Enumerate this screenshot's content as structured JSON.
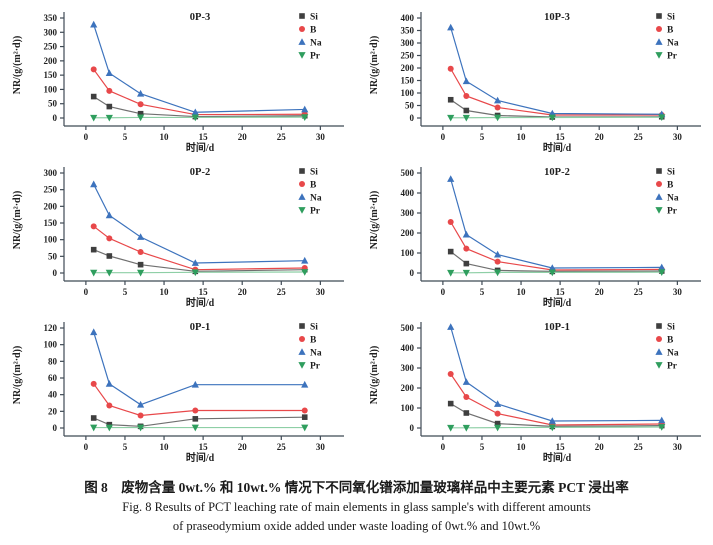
{
  "style": {
    "axis_color": "#3f4a55",
    "text_color": "#1f1f1f",
    "background": "#ffffff",
    "series_colors": {
      "Si": "#3f3f3f",
      "B": "#e8484a",
      "Na": "#3d73bd",
      "Pr": "#2f9e5e"
    }
  },
  "caption": {
    "zh": "图 8　废物含量 0wt.% 和 10wt.% 情况下不同氧化镨添加量玻璃样品中主要元素 PCT 浸出率",
    "en_line1": "Fig. 8    Results of PCT leaching rate of main elements in glass sample's with different amounts",
    "en_line2": "of praseodymium oxide added under waste loading of 0wt.% and 10wt.%"
  },
  "chart_data": [
    {
      "type": "line",
      "title": "0P-3",
      "xlabel": "时间/d",
      "ylabel": "NR/(g/(m²·d))",
      "x": [
        1,
        3,
        7,
        14,
        28
      ],
      "xticks": [
        0,
        5,
        10,
        15,
        20,
        25,
        30
      ],
      "xlim": [
        0,
        30
      ],
      "ylim": [
        0,
        350
      ],
      "yticks": [
        0,
        50,
        100,
        150,
        200,
        250,
        300,
        350
      ],
      "legend_position": "top-right",
      "grid": false,
      "series": [
        {
          "name": "Si",
          "marker": "square",
          "color": "#3f3f3f",
          "line_color": "#707070",
          "values": [
            75,
            40,
            15,
            5,
            8
          ]
        },
        {
          "name": "B",
          "marker": "circle",
          "color": "#e8484a",
          "values": [
            170,
            95,
            48,
            12,
            13
          ]
        },
        {
          "name": "Na",
          "marker": "triangle-up",
          "color": "#3d73bd",
          "values": [
            327,
            157,
            85,
            20,
            30
          ]
        },
        {
          "name": "Pr",
          "marker": "triangle-down",
          "color": "#2f9e5e",
          "line_color": "#8ecfa6",
          "values": [
            1,
            1,
            2,
            2,
            3
          ]
        }
      ]
    },
    {
      "type": "line",
      "title": "10P-3",
      "xlabel": "时间/d",
      "ylabel": "NR/(g/(m²·d))",
      "x": [
        1,
        3,
        7,
        14,
        28
      ],
      "xticks": [
        0,
        5,
        10,
        15,
        20,
        25,
        30
      ],
      "xlim": [
        0,
        30
      ],
      "ylim": [
        0,
        400
      ],
      "yticks": [
        0,
        50,
        100,
        150,
        200,
        250,
        300,
        350,
        400
      ],
      "legend_position": "top-right",
      "grid": false,
      "series": [
        {
          "name": "Si",
          "marker": "square",
          "color": "#3f3f3f",
          "line_color": "#707070",
          "values": [
            73,
            30,
            10,
            4,
            5
          ]
        },
        {
          "name": "B",
          "marker": "circle",
          "color": "#e8484a",
          "values": [
            197,
            88,
            42,
            12,
            12
          ]
        },
        {
          "name": "Na",
          "marker": "triangle-up",
          "color": "#3d73bd",
          "values": [
            362,
            147,
            70,
            18,
            15
          ]
        },
        {
          "name": "Pr",
          "marker": "triangle-down",
          "color": "#2f9e5e",
          "line_color": "#8ecfa6",
          "values": [
            1,
            1,
            2,
            2,
            3
          ]
        }
      ]
    },
    {
      "type": "line",
      "title": "0P-2",
      "xlabel": "时间/d",
      "ylabel": "NR/(g/(m²·d))",
      "x": [
        1,
        3,
        7,
        14,
        28
      ],
      "xticks": [
        0,
        5,
        10,
        15,
        20,
        25,
        30
      ],
      "xlim": [
        0,
        30
      ],
      "ylim": [
        0,
        300
      ],
      "yticks": [
        0,
        50,
        100,
        150,
        200,
        250,
        300
      ],
      "legend_position": "top-right",
      "grid": false,
      "series": [
        {
          "name": "Si",
          "marker": "square",
          "color": "#3f3f3f",
          "line_color": "#707070",
          "values": [
            70,
            51,
            25,
            5,
            10
          ]
        },
        {
          "name": "B",
          "marker": "circle",
          "color": "#e8484a",
          "values": [
            140,
            104,
            63,
            10,
            15
          ]
        },
        {
          "name": "Na",
          "marker": "triangle-up",
          "color": "#3d73bd",
          "values": [
            266,
            173,
            108,
            30,
            37
          ]
        },
        {
          "name": "Pr",
          "marker": "triangle-down",
          "color": "#2f9e5e",
          "line_color": "#8ecfa6",
          "values": [
            1,
            1,
            1,
            2,
            3
          ]
        }
      ]
    },
    {
      "type": "line",
      "title": "10P-2",
      "xlabel": "时间/d",
      "ylabel": "NR/(g/(m²·d))",
      "x": [
        1,
        3,
        7,
        14,
        28
      ],
      "xticks": [
        0,
        5,
        10,
        15,
        20,
        25,
        30
      ],
      "xlim": [
        0,
        30
      ],
      "ylim": [
        0,
        500
      ],
      "yticks": [
        0,
        100,
        200,
        300,
        400,
        500
      ],
      "legend_position": "top-right",
      "grid": false,
      "series": [
        {
          "name": "Si",
          "marker": "square",
          "color": "#3f3f3f",
          "line_color": "#707070",
          "values": [
            107,
            47,
            13,
            8,
            10
          ]
        },
        {
          "name": "B",
          "marker": "circle",
          "color": "#e8484a",
          "values": [
            255,
            122,
            57,
            15,
            18
          ]
        },
        {
          "name": "Na",
          "marker": "triangle-up",
          "color": "#3d73bd",
          "values": [
            470,
            192,
            92,
            25,
            28
          ]
        },
        {
          "name": "Pr",
          "marker": "triangle-down",
          "color": "#2f9e5e",
          "line_color": "#8ecfa6",
          "values": [
            1,
            1,
            3,
            3,
            4
          ]
        }
      ]
    },
    {
      "type": "line",
      "title": "0P-1",
      "xlabel": "时间/d",
      "ylabel": "NR/(g/(m²·d))",
      "x": [
        1,
        3,
        7,
        14,
        28
      ],
      "xticks": [
        0,
        5,
        10,
        15,
        20,
        25,
        30
      ],
      "xlim": [
        0,
        30
      ],
      "ylim": [
        0,
        120
      ],
      "yticks": [
        0,
        20,
        40,
        60,
        80,
        100,
        120
      ],
      "legend_position": "top-right",
      "grid": false,
      "series": [
        {
          "name": "Si",
          "marker": "square",
          "color": "#3f3f3f",
          "line_color": "#707070",
          "values": [
            12,
            4,
            2,
            11,
            13
          ]
        },
        {
          "name": "B",
          "marker": "circle",
          "color": "#e8484a",
          "values": [
            53,
            27,
            15,
            21,
            21
          ]
        },
        {
          "name": "Na",
          "marker": "triangle-up",
          "color": "#3d73bd",
          "values": [
            115,
            53,
            28,
            52,
            52
          ]
        },
        {
          "name": "Pr",
          "marker": "triangle-down",
          "color": "#2f9e5e",
          "line_color": "#8ecfa6",
          "values": [
            0.5,
            0.5,
            0.5,
            0.5,
            0.5
          ]
        }
      ]
    },
    {
      "type": "line",
      "title": "10P-1",
      "xlabel": "时间/d",
      "ylabel": "NR/(g/(m²·d))",
      "x": [
        1,
        3,
        7,
        14,
        28
      ],
      "xticks": [
        0,
        5,
        10,
        15,
        20,
        25,
        30
      ],
      "xlim": [
        0,
        30
      ],
      "ylim": [
        0,
        500
      ],
      "yticks": [
        0,
        100,
        200,
        300,
        400,
        500
      ],
      "legend_position": "top-right",
      "grid": false,
      "series": [
        {
          "name": "Si",
          "marker": "square",
          "color": "#3f3f3f",
          "line_color": "#707070",
          "values": [
            122,
            75,
            22,
            8,
            12
          ]
        },
        {
          "name": "B",
          "marker": "circle",
          "color": "#e8484a",
          "values": [
            270,
            155,
            72,
            15,
            20
          ]
        },
        {
          "name": "Na",
          "marker": "triangle-up",
          "color": "#3d73bd",
          "values": [
            505,
            230,
            120,
            35,
            38
          ]
        },
        {
          "name": "Pr",
          "marker": "triangle-down",
          "color": "#2f9e5e",
          "line_color": "#8ecfa6",
          "values": [
            1,
            1,
            2,
            3,
            5
          ]
        }
      ]
    }
  ]
}
